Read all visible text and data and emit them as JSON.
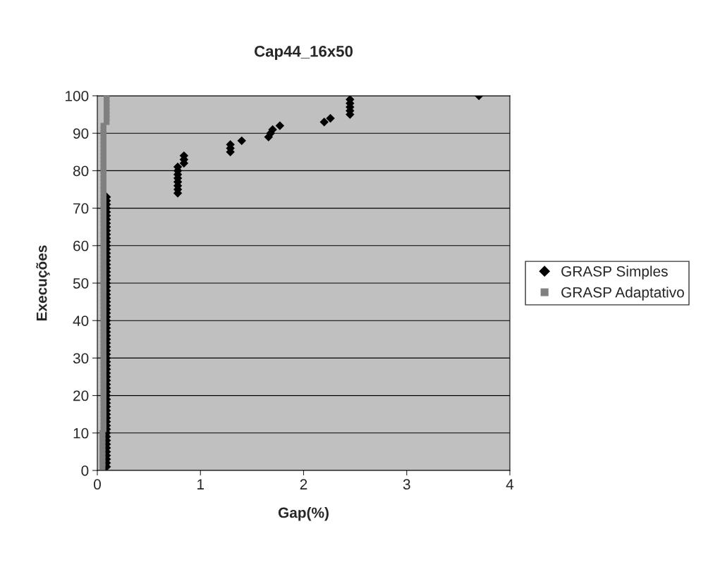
{
  "chart_data": {
    "type": "scatter",
    "title": "Cap44_16x50",
    "xlabel": "Gap(%)",
    "ylabel": "Execuções",
    "xlim": [
      0,
      4
    ],
    "xticks": [
      0,
      1,
      2,
      3,
      4
    ],
    "ylim": [
      0,
      100
    ],
    "yticks": [
      0,
      10,
      20,
      30,
      40,
      50,
      60,
      70,
      80,
      90,
      100
    ],
    "grid": "y",
    "legend": "right",
    "series": [
      {
        "name": "GRASP Simples",
        "color": "#000000",
        "marker": "diamond",
        "x": [
          0.09,
          0.09,
          0.09,
          0.09,
          0.09,
          0.09,
          0.09,
          0.09,
          0.09,
          0.09,
          0.09,
          0.09,
          0.09,
          0.09,
          0.09,
          0.09,
          0.09,
          0.09,
          0.09,
          0.09,
          0.09,
          0.09,
          0.09,
          0.09,
          0.09,
          0.09,
          0.09,
          0.09,
          0.09,
          0.09,
          0.09,
          0.09,
          0.09,
          0.09,
          0.09,
          0.09,
          0.09,
          0.09,
          0.09,
          0.09,
          0.09,
          0.09,
          0.09,
          0.09,
          0.09,
          0.09,
          0.09,
          0.09,
          0.09,
          0.09,
          0.09,
          0.09,
          0.09,
          0.09,
          0.09,
          0.09,
          0.09,
          0.09,
          0.09,
          0.09,
          0.09,
          0.09,
          0.09,
          0.09,
          0.09,
          0.09,
          0.09,
          0.09,
          0.09,
          0.09,
          0.09,
          0.09,
          0.09,
          0.78,
          0.78,
          0.78,
          0.78,
          0.78,
          0.78,
          0.78,
          0.78,
          0.84,
          0.84,
          0.84,
          1.29,
          1.29,
          1.29,
          1.4,
          1.66,
          1.68,
          1.7,
          1.77,
          2.2,
          2.26,
          2.45,
          2.45,
          2.45,
          2.45,
          2.45,
          3.7
        ],
        "values": [
          1,
          2,
          3,
          4,
          5,
          6,
          7,
          8,
          9,
          10,
          11,
          12,
          13,
          14,
          15,
          16,
          17,
          18,
          19,
          20,
          21,
          22,
          23,
          24,
          25,
          26,
          27,
          28,
          29,
          30,
          31,
          32,
          33,
          34,
          35,
          36,
          37,
          38,
          39,
          40,
          41,
          42,
          43,
          44,
          45,
          46,
          47,
          48,
          49,
          50,
          51,
          52,
          53,
          54,
          55,
          56,
          57,
          58,
          59,
          60,
          61,
          62,
          63,
          64,
          65,
          66,
          67,
          68,
          69,
          70,
          71,
          72,
          73,
          74,
          75,
          76,
          77,
          78,
          79,
          80,
          81,
          82,
          83,
          84,
          85,
          86,
          87,
          88,
          89,
          90,
          91,
          92,
          93,
          94,
          95,
          96,
          97,
          98,
          99,
          100
        ]
      },
      {
        "name": "GRASP Adaptativo",
        "color": "#808080",
        "marker": "square",
        "x": [
          0.05,
          0.05,
          0.05,
          0.05,
          0.05,
          0.05,
          0.05,
          0.05,
          0.05,
          0.05,
          0.06,
          0.06,
          0.06,
          0.06,
          0.06,
          0.06,
          0.06,
          0.06,
          0.06,
          0.06,
          0.06,
          0.06,
          0.06,
          0.06,
          0.06,
          0.06,
          0.06,
          0.06,
          0.06,
          0.06,
          0.06,
          0.06,
          0.06,
          0.06,
          0.06,
          0.06,
          0.06,
          0.06,
          0.06,
          0.06,
          0.06,
          0.06,
          0.06,
          0.06,
          0.06,
          0.06,
          0.06,
          0.06,
          0.06,
          0.06,
          0.06,
          0.06,
          0.06,
          0.06,
          0.06,
          0.06,
          0.06,
          0.06,
          0.06,
          0.06,
          0.06,
          0.06,
          0.06,
          0.06,
          0.06,
          0.06,
          0.06,
          0.06,
          0.06,
          0.06,
          0.06,
          0.06,
          0.06,
          0.06,
          0.06,
          0.06,
          0.06,
          0.06,
          0.06,
          0.06,
          0.06,
          0.06,
          0.06,
          0.06,
          0.06,
          0.06,
          0.06,
          0.06,
          0.06,
          0.06,
          0.06,
          0.06,
          0.09,
          0.09,
          0.09,
          0.09,
          0.09,
          0.09,
          0.09,
          0.09
        ],
        "values": [
          1,
          2,
          3,
          4,
          5,
          6,
          7,
          8,
          9,
          10,
          11,
          12,
          13,
          14,
          15,
          16,
          17,
          18,
          19,
          20,
          21,
          22,
          23,
          24,
          25,
          26,
          27,
          28,
          29,
          30,
          31,
          32,
          33,
          34,
          35,
          36,
          37,
          38,
          39,
          40,
          41,
          42,
          43,
          44,
          45,
          46,
          47,
          48,
          49,
          50,
          51,
          52,
          53,
          54,
          55,
          56,
          57,
          58,
          59,
          60,
          61,
          62,
          63,
          64,
          65,
          66,
          67,
          68,
          69,
          70,
          71,
          72,
          73,
          74,
          75,
          76,
          77,
          78,
          79,
          80,
          81,
          82,
          83,
          84,
          85,
          86,
          87,
          88,
          89,
          90,
          91,
          92,
          93,
          94,
          95,
          96,
          97,
          98,
          99,
          100
        ]
      }
    ]
  }
}
